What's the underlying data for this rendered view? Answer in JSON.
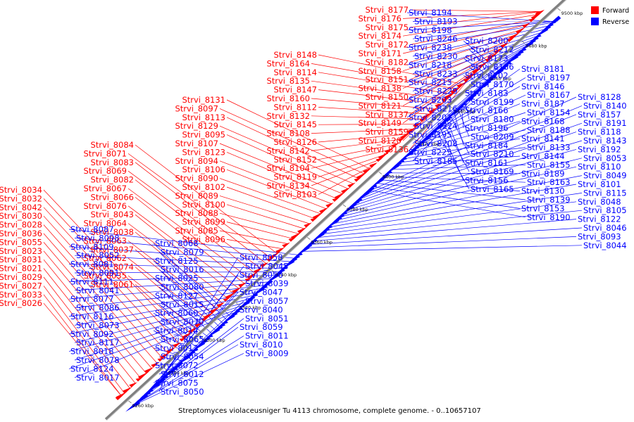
{
  "legend": [
    {
      "label": "Forward",
      "color": "#ff0000"
    },
    {
      "label": "Reverse",
      "color": "#0000ff"
    }
  ],
  "caption": "Streptomyces violaceusniger Tu 4113 chromosome, complete genome. - 0..10657107",
  "colors": {
    "forward": "#ff0000",
    "reverse": "#0000ff",
    "axis": "#808080"
  },
  "ticks": [
    "9260 kbp",
    "9280 kbp",
    "9300 kbp",
    "9320 kbp",
    "9340 kbp",
    "9360 kbp",
    "9380 kbp",
    "9400 kbp",
    "9420 kbp",
    "9440 kbp",
    "9460 kbp",
    "9480 kbp",
    "9500 kbp"
  ],
  "forward_genes": [
    "Strvi_8177",
    "Strvi_8176",
    "Strvi_8175",
    "Strvi_8174",
    "Strvi_8172",
    "Strvi_8171",
    "Strvi_8182",
    "Strvi_8158",
    "Strvi_8151",
    "Strvi_8138",
    "Strvi_8150",
    "Strvi_8121",
    "Strvi_8137",
    "Strvi_8149",
    "Strvi_8159",
    "Strvi_8120",
    "Strvi_8136",
    "Strvi_8148",
    "Strvi_8164",
    "Strvi_8114",
    "Strvi_8135",
    "Strvi_8147",
    "Strvi_8160",
    "Strvi_8112",
    "Strvi_8132",
    "Strvi_8145",
    "Strvi_8108",
    "Strvi_8126",
    "Strvi_8142",
    "Strvi_8152",
    "Strvi_8104",
    "Strvi_8119",
    "Strvi_8134",
    "Strvi_8103",
    "Strvi_8131",
    "Strvi_8097",
    "Strvi_8113",
    "Strvi_8129",
    "Strvi_8095",
    "Strvi_8107",
    "Strvi_8123",
    "Strvi_8094",
    "Strvi_8106",
    "Strvi_8090",
    "Strvi_8102",
    "Strvi_8089",
    "Strvi_8100",
    "Strvi_8088",
    "Strvi_8099",
    "Strvi_8085",
    "Strvi_8096",
    "Strvi_8084",
    "Strvi_8071",
    "Strvi_8083",
    "Strvi_8069",
    "Strvi_8082",
    "Strvi_8067",
    "Strvi_8066",
    "Strvi_8076",
    "Strvi_8043",
    "Strvi_8064",
    "Strvi_8038",
    "Strvi_8063",
    "Strvi_8037",
    "Strvi_8062",
    "Strvi_8074",
    "Strvi_8035",
    "Strvi_8061",
    "Strvi_8034",
    "Strvi_8032",
    "Strvi_8042",
    "Strvi_8030",
    "Strvi_8028",
    "Strvi_8036",
    "Strvi_8055",
    "Strvi_8023",
    "Strvi_8031",
    "Strvi_8021",
    "Strvi_8029",
    "Strvi_8027",
    "Strvi_8033",
    "Strvi_8026"
  ],
  "reverse_genes": [
    "Strvi_8194",
    "Strvi_8193",
    "Strvi_8198",
    "Strvi_8246",
    "Strvi_8238",
    "Strvi_8230",
    "Strvi_8218",
    "Strvi_8233",
    "Strvi_8213",
    "Strvi_8229",
    "Strvi_8203",
    "Strvi_8216",
    "Strvi_8201",
    "Strvi_8224",
    "Strvi_8195",
    "Strvi_8208",
    "Strvi_8225",
    "Strvi_8185",
    "Strvi_8200",
    "Strvi_8212",
    "Strvi_8173",
    "Strvi_8186",
    "Strvi_8202",
    "Strvi_8170",
    "Strvi_8183",
    "Strvi_8199",
    "Strvi_8166",
    "Strvi_8180",
    "Strvi_8196",
    "Strvi_8209",
    "Strvi_8184",
    "Strvi_8210",
    "Strvi_8161",
    "Strvi_8169",
    "Strvi_8156",
    "Strvi_8165",
    "Strvi_8181",
    "Strvi_8197",
    "Strvi_8146",
    "Strvi_8167",
    "Strvi_8187",
    "Strvi_8154",
    "Strvi_8168",
    "Strvi_8188",
    "Strvi_8141",
    "Strvi_8133",
    "Strvi_8144",
    "Strvi_8155",
    "Strvi_8189",
    "Strvi_8163",
    "Strvi_8130",
    "Strvi_8139",
    "Strvi_8153",
    "Strvi_8190",
    "Strvi_8128",
    "Strvi_8140",
    "Strvi_8157",
    "Strvi_8191",
    "Strvi_8118",
    "Strvi_8143",
    "Strvi_8192",
    "Strvi_8053",
    "Strvi_8110",
    "Strvi_8049",
    "Strvi_8101",
    "Strvi_8115",
    "Strvi_8048",
    "Strvi_8105",
    "Strvi_8122",
    "Strvi_8046",
    "Strvi_8093",
    "Strvi_8044",
    "Strvi_8087",
    "Strvi_8098",
    "Strvi_8109",
    "Strvi_8052",
    "Strvi_8081",
    "Strvi_8091",
    "Strvi_8111",
    "Strvi_8041",
    "Strvi_8077",
    "Strvi_8086",
    "Strvi_8116",
    "Strvi_8073",
    "Strvi_8092",
    "Strvi_8117",
    "Strvi_8018",
    "Strvi_8078",
    "Strvi_8124",
    "Strvi_8017",
    "Strvi_8068",
    "Strvi_8079",
    "Strvi_8125",
    "Strvi_8016",
    "Strvi_8025",
    "Strvi_8080",
    "Strvi_8127",
    "Strvi_8015",
    "Strvi_8060",
    "Strvi_8070",
    "Strvi_8014",
    "Strvi_8065",
    "Strvi_8013",
    "Strvi_8054",
    "Strvi_8072",
    "Strvi_8012",
    "Strvi_8075",
    "Strvi_8050",
    "Strvi_8058",
    "Strvi_8045",
    "Strvi_8056",
    "Strvi_8039",
    "Strvi_8047",
    "Strvi_8057",
    "Strvi_8040",
    "Strvi_8051",
    "Strvi_8059",
    "Strvi_8011",
    "Strvi_8010",
    "Strvi_8009"
  ]
}
